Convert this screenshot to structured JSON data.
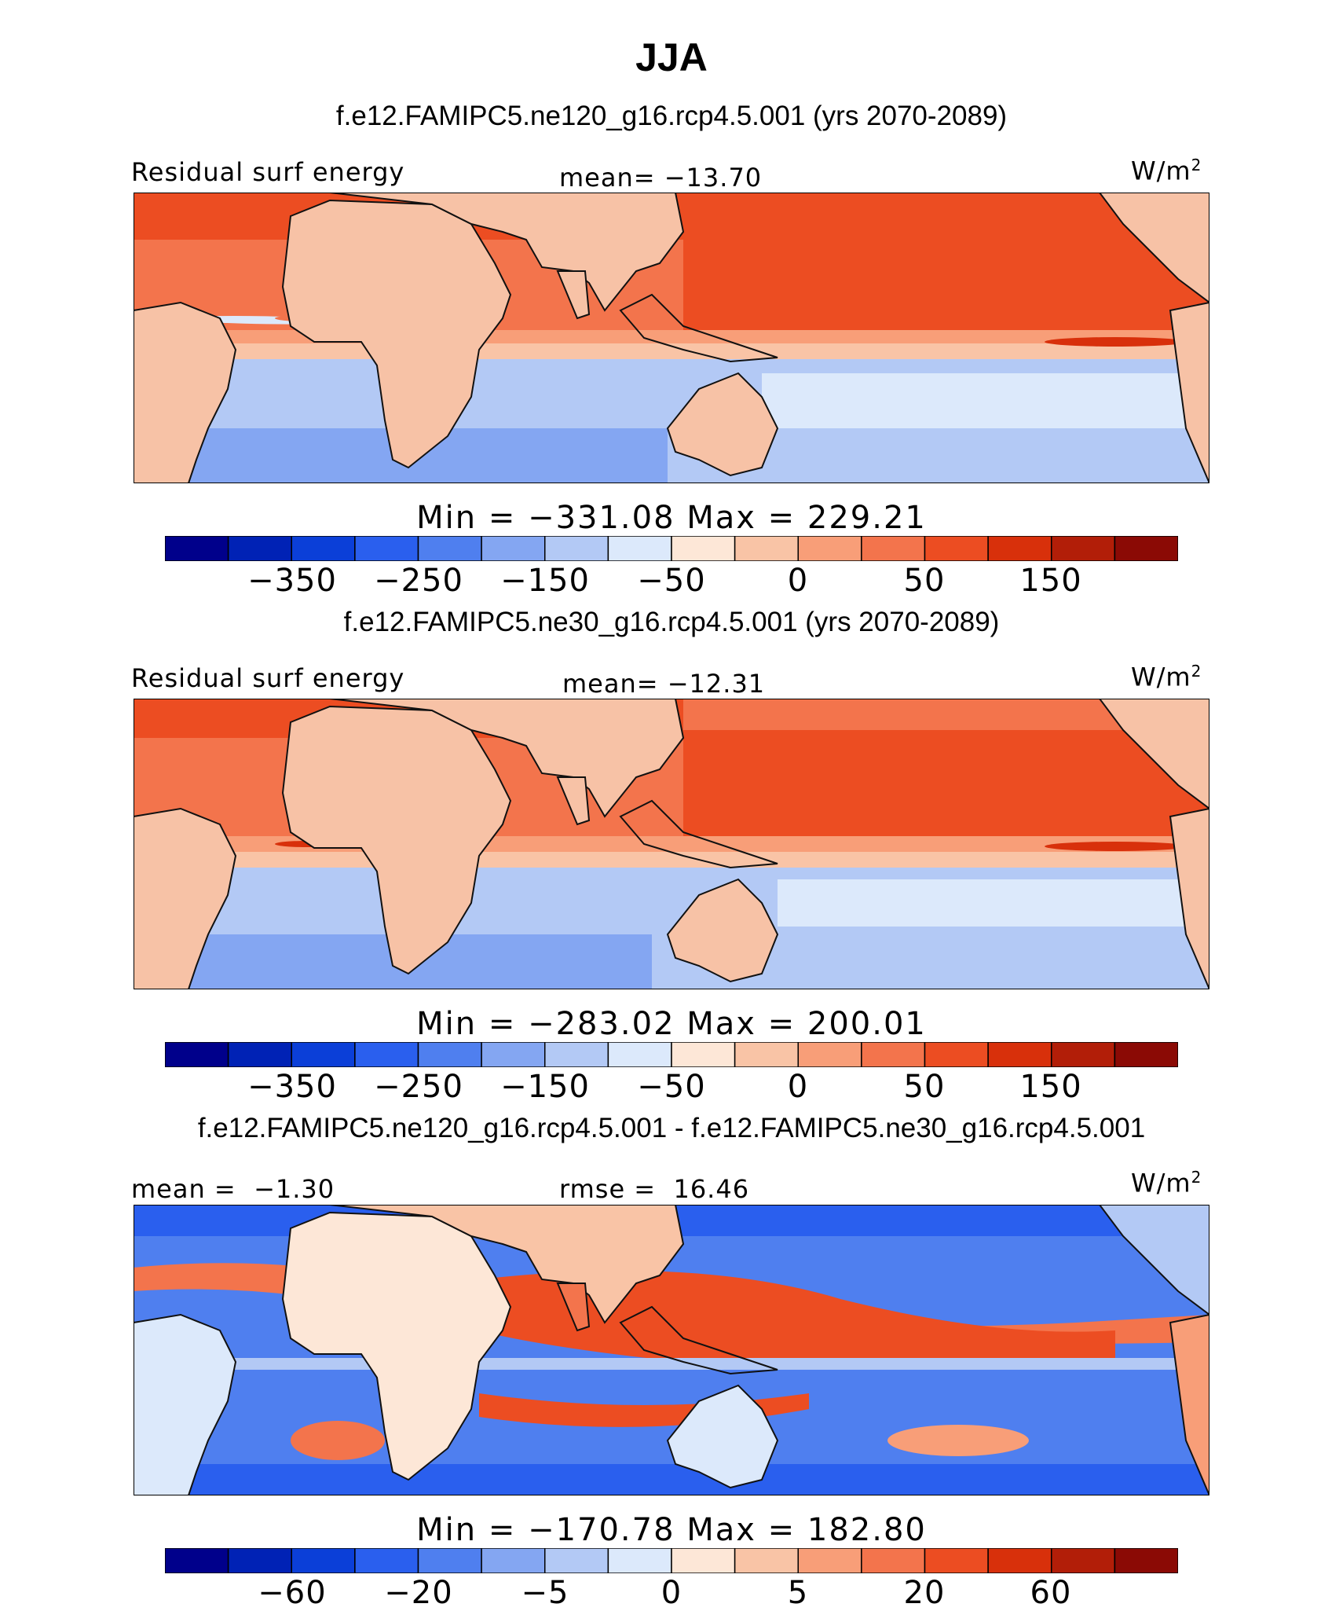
{
  "title": "JJA",
  "colors": {
    "palette_top": [
      "#00008b",
      "#0022b5",
      "#0b3fd8",
      "#2a5fee",
      "#4f7fef",
      "#84a6f2",
      "#b3c9f5",
      "#dce9fb",
      "#fde7d7",
      "#f9c4a6",
      "#f89e78",
      "#f3744c",
      "#ec4d22",
      "#d8300b",
      "#b21e08",
      "#8b0a05"
    ],
    "land": "#f7c2a6",
    "coast": "#111111"
  },
  "panels": [
    {
      "subtitle": "f.e12.FAMIPC5.ne120_g16.rcp4.5.001 (yrs 2070-2089)",
      "left_label": "Residual surf energy",
      "center_label": "mean= −13.70",
      "unit": "W/m",
      "unit_sup": "2",
      "minmax": "Min = −331.08 Max = 229.21",
      "ticks": [
        "−350",
        "−250",
        "−150",
        "−50",
        "0",
        "50",
        "150"
      ]
    },
    {
      "subtitle": "f.e12.FAMIPC5.ne30_g16.rcp4.5.001 (yrs 2070-2089)",
      "left_label": "Residual surf energy",
      "center_label": "mean= −12.31",
      "unit": "W/m",
      "unit_sup": "2",
      "minmax": "Min = −283.02 Max = 200.01",
      "ticks": [
        "−350",
        "−250",
        "−150",
        "−50",
        "0",
        "50",
        "150"
      ]
    },
    {
      "subtitle": "f.e12.FAMIPC5.ne120_g16.rcp4.5.001 - f.e12.FAMIPC5.ne30_g16.rcp4.5.001",
      "left_label": "mean =  −1.30",
      "center_label": "rmse =  16.46",
      "unit": "W/m",
      "unit_sup": "2",
      "minmax": "Min = −170.78 Max = 182.80",
      "ticks": [
        "−60",
        "−20",
        "−5",
        "0",
        "5",
        "20",
        "60"
      ]
    }
  ]
}
